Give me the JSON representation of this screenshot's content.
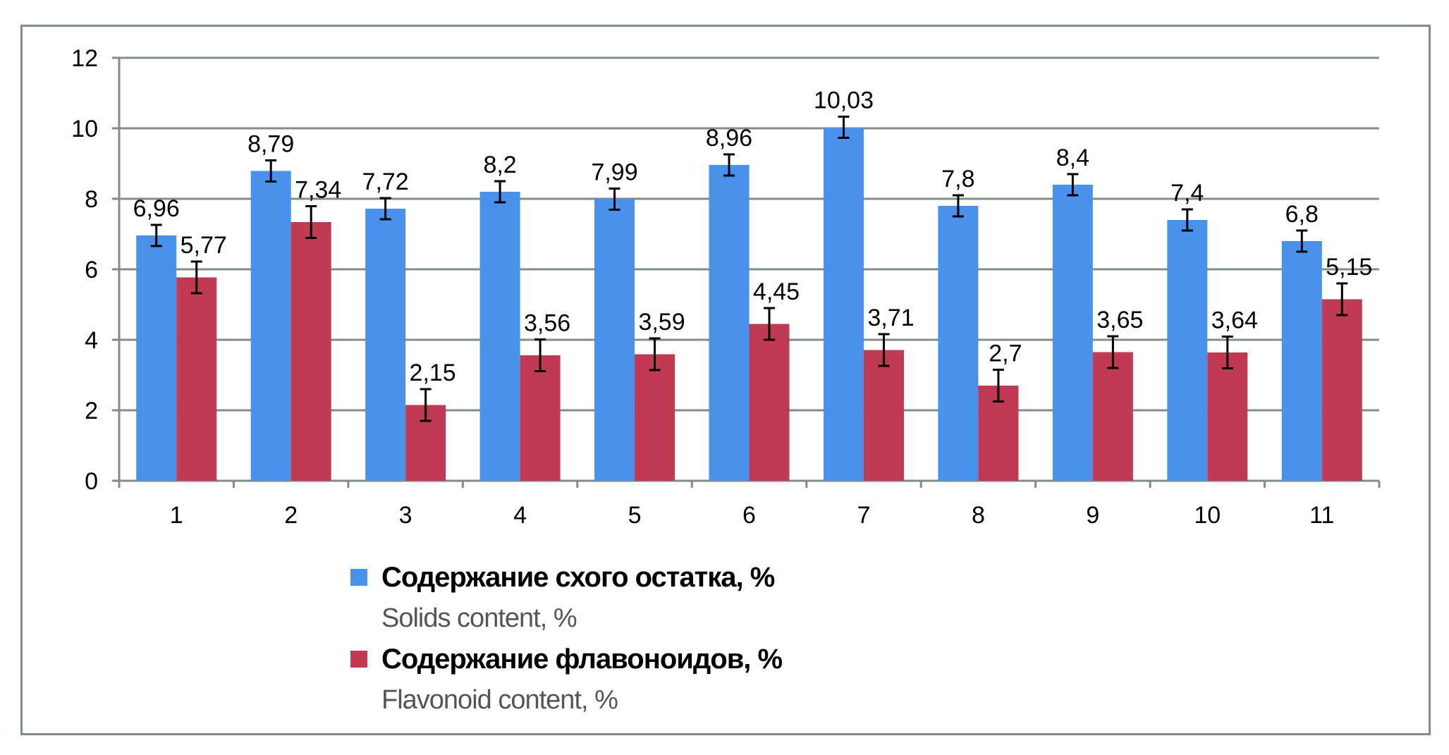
{
  "chart_data": {
    "type": "bar",
    "title": "",
    "xlabel": "",
    "ylabel": "",
    "categories": [
      "1",
      "2",
      "3",
      "4",
      "5",
      "6",
      "7",
      "8",
      "9",
      "10",
      "11"
    ],
    "ylim": [
      0,
      12
    ],
    "yticks": [
      "0",
      "2",
      "4",
      "6",
      "8",
      "10",
      "12"
    ],
    "grid": true,
    "legend_position": "bottom",
    "series": [
      {
        "name": "Содержание схого остатка, %",
        "name_en": "Solids content, %",
        "color": "#4a91eb",
        "values": [
          6.96,
          8.79,
          7.72,
          8.2,
          7.99,
          8.96,
          10.03,
          7.8,
          8.4,
          7.4,
          6.8
        ],
        "labels": [
          "6,96",
          "8,79",
          "7,72",
          "8,2",
          "7,99",
          "8,96",
          "10,03",
          "7,8",
          "8,4",
          "7,4",
          "6,8"
        ],
        "error": 0.3
      },
      {
        "name": "Содержание флавоноидов, %",
        "name_en": "Flavonoid content, %",
        "color": "#c13a53",
        "values": [
          5.77,
          7.34,
          2.15,
          3.56,
          3.59,
          4.45,
          3.71,
          2.7,
          3.65,
          3.64,
          5.15
        ],
        "labels": [
          "5,77",
          "7,34",
          "2,15",
          "3,56",
          "3,59",
          "4,45",
          "3,71",
          "2,7",
          "3,65",
          "3,64",
          "5,15"
        ],
        "error": 0.45
      }
    ]
  }
}
